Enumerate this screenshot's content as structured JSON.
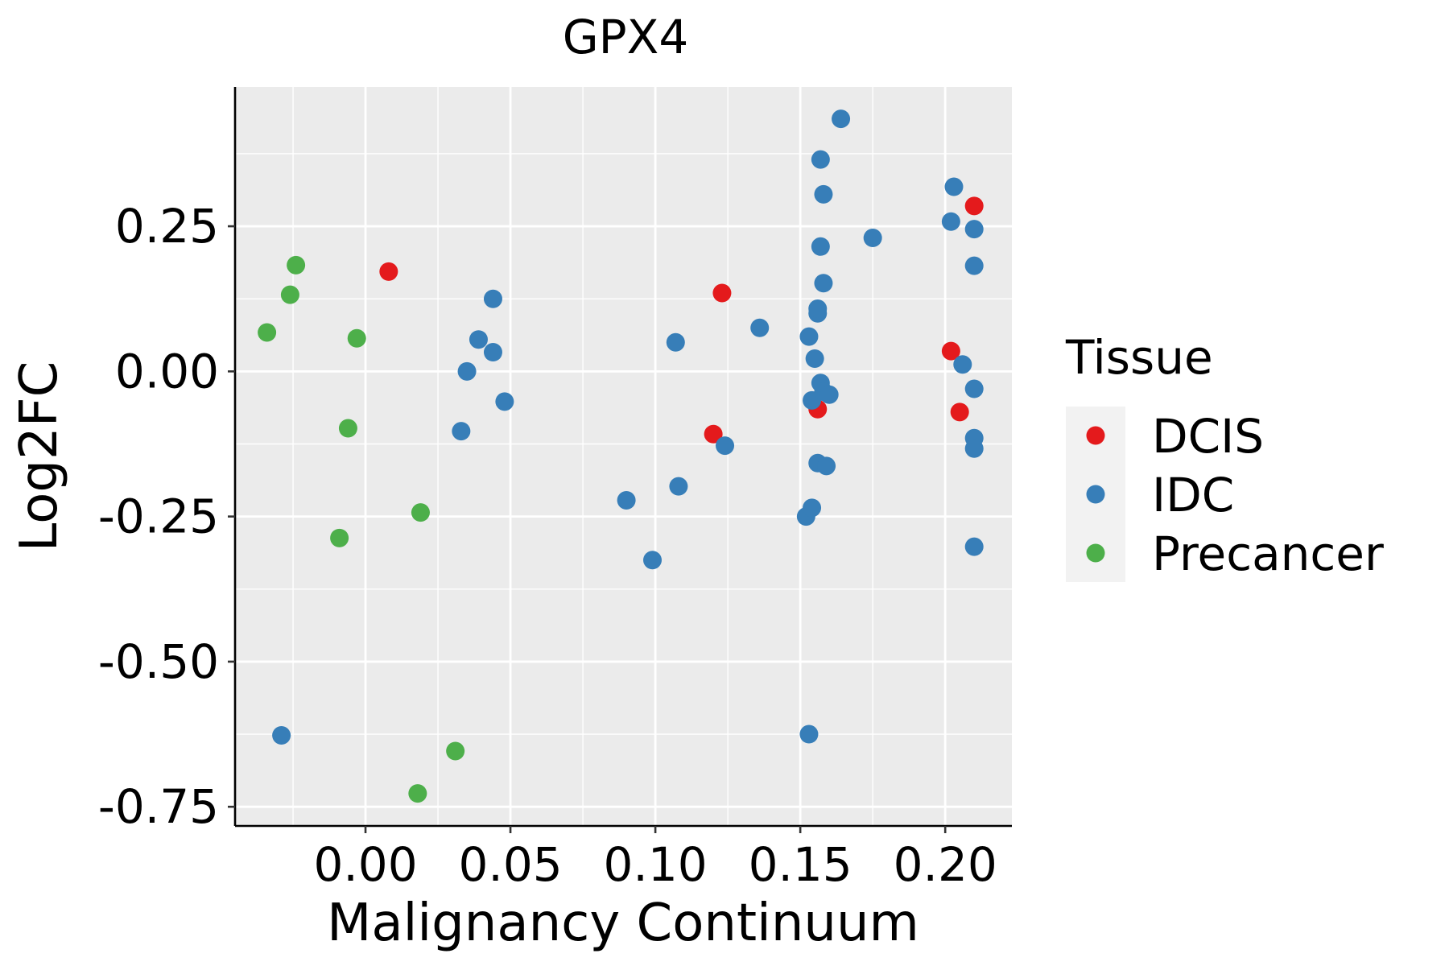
{
  "chart_data": {
    "type": "scatter",
    "title": "GPX4",
    "xlabel": "Malignancy Continuum",
    "ylabel": "Log2FC",
    "xlim": [
      -0.045,
      0.223
    ],
    "ylim": [
      -0.783,
      0.49
    ],
    "x_ticks": [
      0.0,
      0.05,
      0.1,
      0.15,
      0.2
    ],
    "x_tick_labels": [
      "0.00",
      "0.05",
      "0.10",
      "0.15",
      "0.20"
    ],
    "y_ticks": [
      0.25,
      0.0,
      -0.25,
      -0.5,
      -0.75
    ],
    "y_tick_labels": [
      "0.25",
      "0.00",
      "-0.25",
      "-0.50",
      "-0.75"
    ],
    "grid": true,
    "legend": {
      "title": "Tissue",
      "placement": "right",
      "entries": [
        "DCIS",
        "IDC",
        "Precancer"
      ]
    },
    "colors": {
      "DCIS": "#E41A1C",
      "IDC": "#377EB8",
      "Precancer": "#4DAF4A",
      "panel": "#EBEBEB",
      "legend_key_bg": "#F2F2F2"
    },
    "series": [
      {
        "name": "DCIS",
        "points": [
          {
            "x": 0.008,
            "y": 0.172
          },
          {
            "x": 0.123,
            "y": 0.135
          },
          {
            "x": 0.12,
            "y": -0.108
          },
          {
            "x": 0.156,
            "y": -0.065
          },
          {
            "x": 0.21,
            "y": 0.285
          },
          {
            "x": 0.202,
            "y": 0.035
          },
          {
            "x": 0.205,
            "y": -0.07
          }
        ]
      },
      {
        "name": "IDC",
        "points": [
          {
            "x": -0.029,
            "y": -0.627
          },
          {
            "x": 0.033,
            "y": -0.103
          },
          {
            "x": 0.035,
            "y": 0.0
          },
          {
            "x": 0.039,
            "y": 0.055
          },
          {
            "x": 0.044,
            "y": 0.125
          },
          {
            "x": 0.044,
            "y": 0.033
          },
          {
            "x": 0.048,
            "y": -0.052
          },
          {
            "x": 0.09,
            "y": -0.222
          },
          {
            "x": 0.099,
            "y": -0.325
          },
          {
            "x": 0.107,
            "y": 0.05
          },
          {
            "x": 0.108,
            "y": -0.198
          },
          {
            "x": 0.124,
            "y": -0.128
          },
          {
            "x": 0.136,
            "y": 0.075
          },
          {
            "x": 0.152,
            "y": -0.25
          },
          {
            "x": 0.153,
            "y": 0.06
          },
          {
            "x": 0.153,
            "y": -0.625
          },
          {
            "x": 0.154,
            "y": -0.235
          },
          {
            "x": 0.154,
            "y": -0.05
          },
          {
            "x": 0.155,
            "y": 0.022
          },
          {
            "x": 0.156,
            "y": 0.1
          },
          {
            "x": 0.156,
            "y": 0.108
          },
          {
            "x": 0.156,
            "y": -0.158
          },
          {
            "x": 0.157,
            "y": 0.365
          },
          {
            "x": 0.157,
            "y": 0.215
          },
          {
            "x": 0.157,
            "y": -0.02
          },
          {
            "x": 0.158,
            "y": -0.035
          },
          {
            "x": 0.158,
            "y": 0.152
          },
          {
            "x": 0.158,
            "y": 0.305
          },
          {
            "x": 0.159,
            "y": -0.163
          },
          {
            "x": 0.16,
            "y": -0.04
          },
          {
            "x": 0.164,
            "y": 0.435
          },
          {
            "x": 0.175,
            "y": 0.23
          },
          {
            "x": 0.202,
            "y": 0.258
          },
          {
            "x": 0.203,
            "y": 0.318
          },
          {
            "x": 0.206,
            "y": 0.012
          },
          {
            "x": 0.21,
            "y": 0.245
          },
          {
            "x": 0.21,
            "y": 0.182
          },
          {
            "x": 0.21,
            "y": -0.03
          },
          {
            "x": 0.21,
            "y": -0.115
          },
          {
            "x": 0.21,
            "y": -0.133
          },
          {
            "x": 0.21,
            "y": -0.302
          }
        ]
      },
      {
        "name": "Precancer",
        "points": [
          {
            "x": -0.034,
            "y": 0.067
          },
          {
            "x": -0.026,
            "y": 0.132
          },
          {
            "x": -0.024,
            "y": 0.183
          },
          {
            "x": -0.003,
            "y": 0.057
          },
          {
            "x": -0.006,
            "y": -0.098
          },
          {
            "x": -0.009,
            "y": -0.287
          },
          {
            "x": 0.019,
            "y": -0.243
          },
          {
            "x": 0.018,
            "y": -0.727
          },
          {
            "x": 0.031,
            "y": -0.654
          }
        ]
      }
    ]
  }
}
